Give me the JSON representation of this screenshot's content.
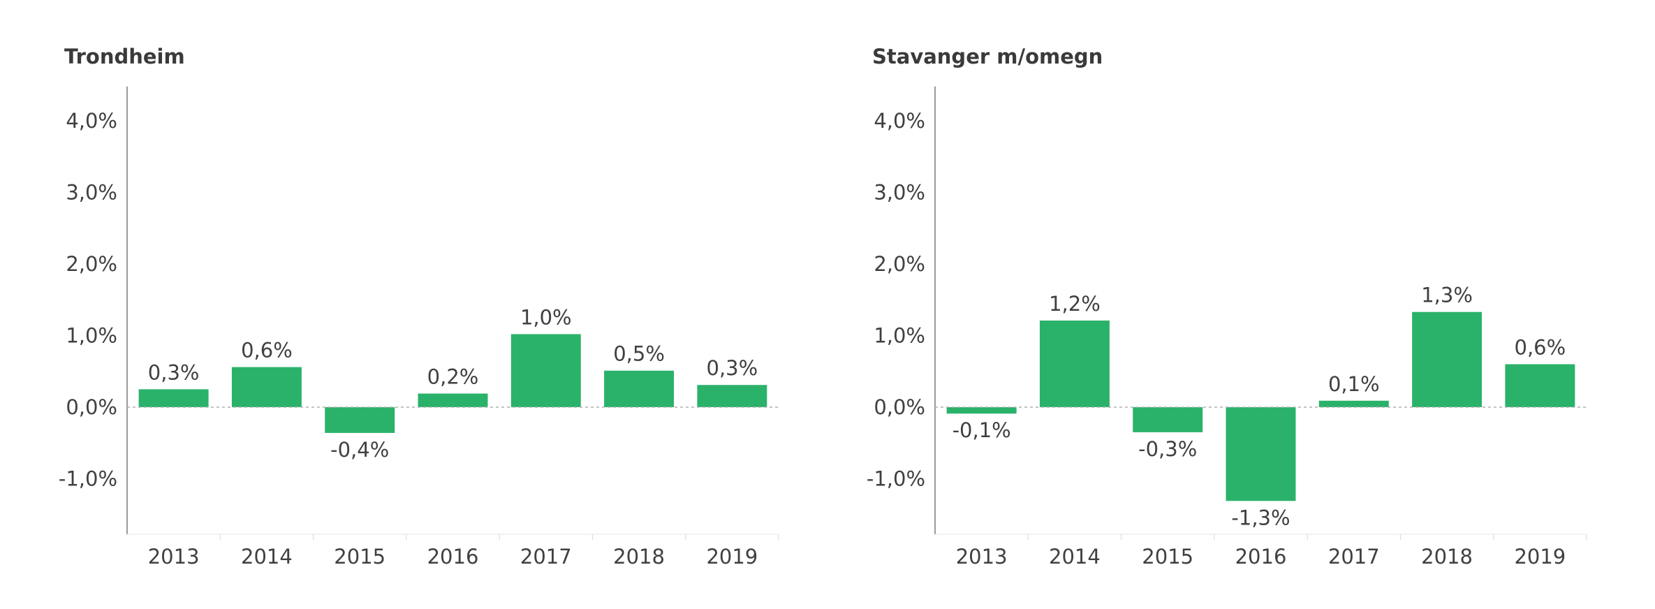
{
  "colors": {
    "bar": "#2bb26a",
    "axis": "#9a9a9a",
    "zero_line": "#b0b0b0",
    "text": "#404040"
  },
  "chart_data": [
    {
      "type": "bar",
      "title": "Trondheim",
      "categories": [
        "2013",
        "2014",
        "2015",
        "2016",
        "2017",
        "2018",
        "2019"
      ],
      "values": [
        0.25,
        0.56,
        -0.36,
        0.19,
        1.02,
        0.51,
        0.31
      ],
      "data_labels": [
        "0,3%",
        "0,6%",
        "-0,4%",
        "0,2%",
        "1,0%",
        "0,5%",
        "0,3%"
      ],
      "y_ticks": [
        4.0,
        3.0,
        2.0,
        1.0,
        0.0,
        -1.0
      ],
      "y_tick_labels": [
        "4,0%",
        "3,0%",
        "2,0%",
        "1,0%",
        "0,0%",
        "-1,0%"
      ],
      "ylim": [
        -1.75,
        4.5
      ],
      "xlabel": "",
      "ylabel": "",
      "grid": false
    },
    {
      "type": "bar",
      "title": "Stavanger m/omegn",
      "categories": [
        "2013",
        "2014",
        "2015",
        "2016",
        "2017",
        "2018",
        "2019"
      ],
      "values": [
        -0.09,
        1.21,
        -0.35,
        -1.31,
        0.09,
        1.33,
        0.6
      ],
      "data_labels": [
        "-0,1%",
        "1,2%",
        "-0,3%",
        "-1,3%",
        "0,1%",
        "1,3%",
        "0,6%"
      ],
      "y_ticks": [
        4.0,
        3.0,
        2.0,
        1.0,
        0.0,
        -1.0
      ],
      "y_tick_labels": [
        "4,0%",
        "3,0%",
        "2,0%",
        "1,0%",
        "0,0%",
        "-1,0%"
      ],
      "ylim": [
        -1.75,
        4.5
      ],
      "xlabel": "",
      "ylabel": "",
      "grid": false
    }
  ]
}
